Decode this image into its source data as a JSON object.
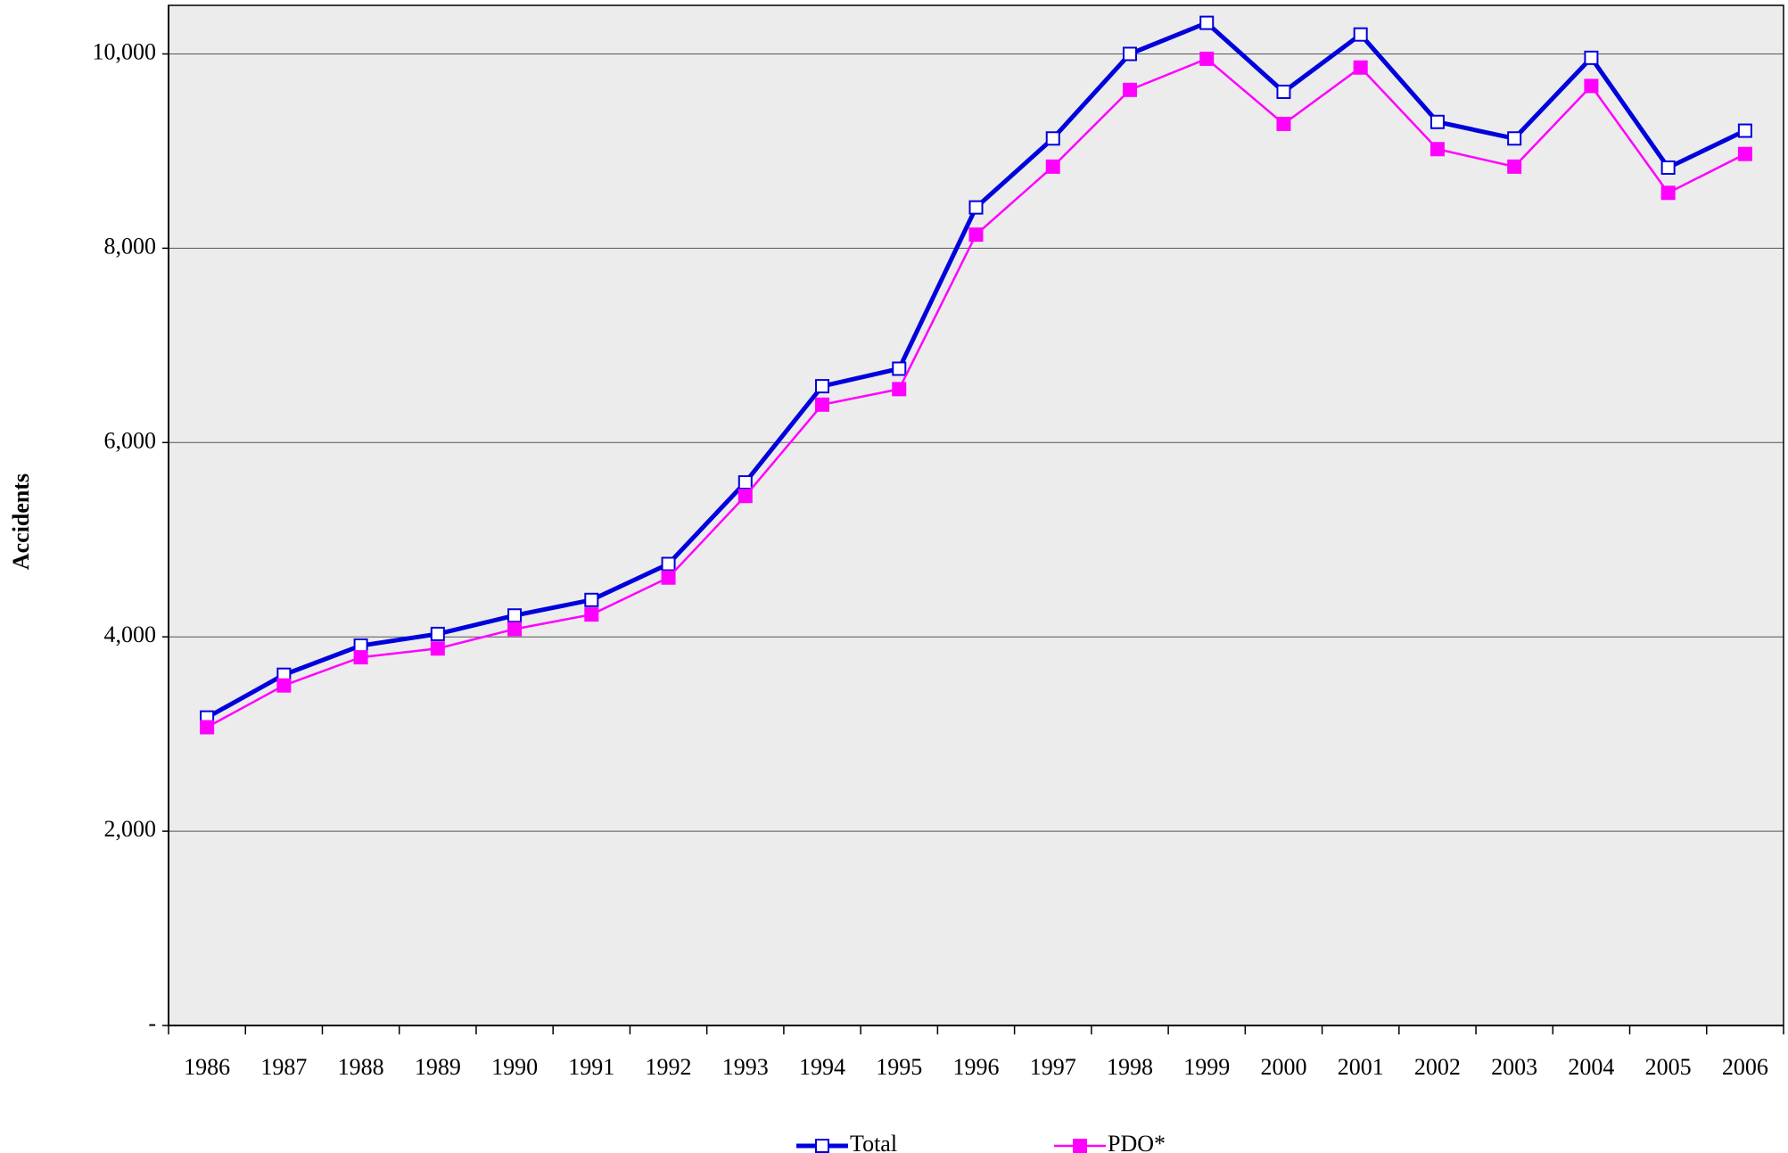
{
  "chart_data": {
    "type": "line",
    "y_label": "Accidents",
    "categories": [
      "1986",
      "1987",
      "1988",
      "1989",
      "1990",
      "1991",
      "1992",
      "1993",
      "1994",
      "1995",
      "1996",
      "1997",
      "1998",
      "1999",
      "2000",
      "2001",
      "2002",
      "2003",
      "2004",
      "2005",
      "2006"
    ],
    "series": [
      {
        "name": "Total",
        "color": "#0000dd",
        "marker": "open-square",
        "values": [
          3170,
          3610,
          3910,
          4030,
          4220,
          4380,
          4750,
          5590,
          6580,
          6760,
          8420,
          9130,
          10000,
          10320,
          9610,
          10200,
          9300,
          9130,
          9960,
          8830,
          9210
        ]
      },
      {
        "name": "PDO*",
        "color": "#ff00ff",
        "marker": "square",
        "values": [
          3070,
          3500,
          3790,
          3880,
          4080,
          4230,
          4610,
          5450,
          6390,
          6550,
          8140,
          8840,
          9630,
          9950,
          9280,
          9860,
          9020,
          8840,
          9670,
          8570,
          8970
        ]
      }
    ],
    "ylim": [
      0,
      10500
    ],
    "yticks": [
      {
        "value": 0,
        "label": "-"
      },
      {
        "value": 2000,
        "label": "2,000"
      },
      {
        "value": 4000,
        "label": "4,000"
      },
      {
        "value": 6000,
        "label": "6,000"
      },
      {
        "value": 8000,
        "label": "8,000"
      },
      {
        "value": 10000,
        "label": "10,000"
      }
    ],
    "grid": true
  }
}
